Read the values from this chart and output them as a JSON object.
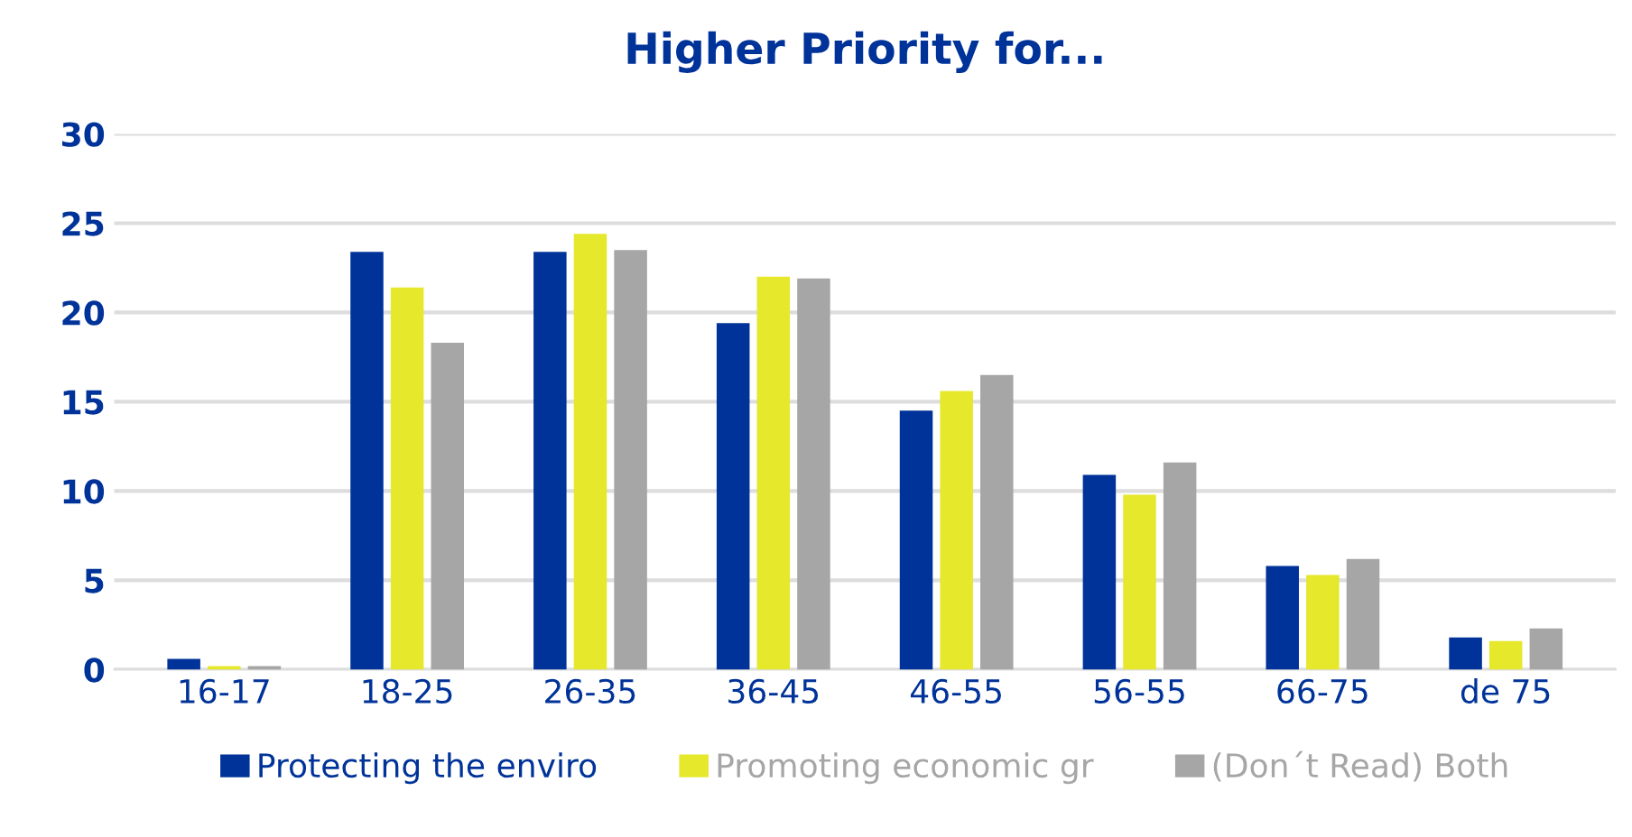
{
  "chart_data": {
    "type": "bar",
    "title": "Higher Priority for...",
    "categories": [
      "16-17",
      "18-25",
      "26-35",
      "36-45",
      "46-55",
      "56-55",
      "66-75",
      "de 75"
    ],
    "series": [
      {
        "name": "Protecting the enviro",
        "color": "#003399",
        "values": [
          0.6,
          23.4,
          23.4,
          19.4,
          14.5,
          10.9,
          5.8,
          1.8
        ]
      },
      {
        "name": "Promoting economic gr",
        "color": "#e5e82b",
        "values": [
          0.2,
          21.4,
          24.4,
          22.0,
          15.6,
          9.8,
          5.3,
          1.6
        ]
      },
      {
        "name": "(Don´t Read) Both",
        "color": "#a6a6a6",
        "values": [
          0.2,
          18.3,
          23.5,
          21.9,
          16.5,
          11.6,
          6.2,
          2.3
        ]
      }
    ],
    "ylim": [
      0,
      30
    ],
    "yticks": [
      0,
      5,
      10,
      15,
      20,
      25,
      30
    ],
    "grid": "y",
    "legend": "bottom"
  }
}
